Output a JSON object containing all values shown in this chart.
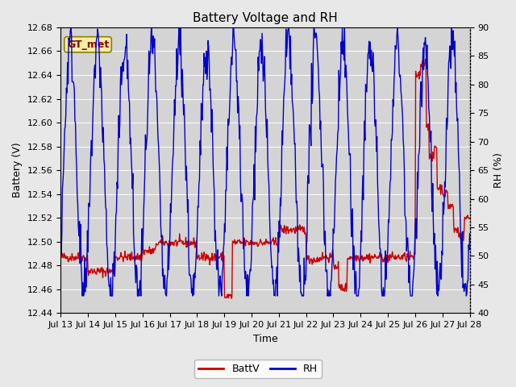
{
  "title": "Battery Voltage and RH",
  "xlabel": "Time",
  "ylabel_left": "Battery (V)",
  "ylabel_right": "RH (%)",
  "annotation_text": "GT_met",
  "ylim_left": [
    12.44,
    12.68
  ],
  "ylim_right": [
    40,
    90
  ],
  "yticks_left": [
    12.44,
    12.46,
    12.48,
    12.5,
    12.52,
    12.54,
    12.56,
    12.58,
    12.6,
    12.62,
    12.64,
    12.66,
    12.68
  ],
  "yticks_right": [
    40,
    45,
    50,
    55,
    60,
    65,
    70,
    75,
    80,
    85,
    90
  ],
  "x_tick_labels": [
    "Jul 13",
    "Jul 14",
    "Jul 15",
    "Jul 16",
    "Jul 17",
    "Jul 18",
    "Jul 19",
    "Jul 20",
    "Jul 21",
    "Jul 22",
    "Jul 23",
    "Jul 24",
    "Jul 25",
    "Jul 26",
    "Jul 27",
    "Jul 28"
  ],
  "battv_color": "#cc0000",
  "rh_color": "#0000cc",
  "fig_bg_color": "#e8e8e8",
  "plot_bg_color": "#d4d4d4",
  "legend_battv": "BattV",
  "legend_rh": "RH",
  "title_fontsize": 11,
  "axis_label_fontsize": 9,
  "tick_fontsize": 8,
  "legend_fontsize": 9,
  "annotation_fontsize": 9,
  "grid_color": "#ffffff",
  "grid_linewidth": 0.7
}
